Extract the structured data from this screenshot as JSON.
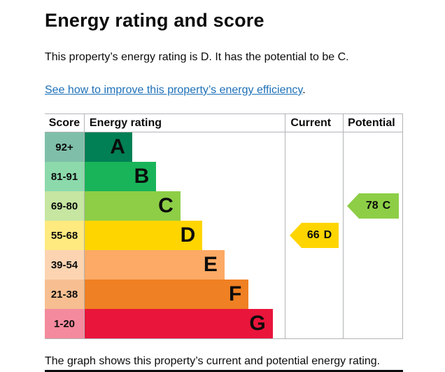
{
  "page": {
    "title": "Energy rating and score",
    "intro": "This property’s energy rating is D. It has the potential to be C.",
    "link_text": "See how to improve this property’s energy efficiency",
    "link_suffix": ".",
    "footer": "The graph shows this property’s current and potential energy rating."
  },
  "chart_data": {
    "type": "bar",
    "title": "Energy rating and score",
    "headers": [
      "Score",
      "Energy rating",
      "Current",
      "Potential"
    ],
    "bands": [
      {
        "score": "92+",
        "letter": "A",
        "color": "#008054",
        "tint": "#7fbfa9",
        "width_pct": 24
      },
      {
        "score": "81-91",
        "letter": "B",
        "color": "#19b459",
        "tint": "#8cd9ac",
        "width_pct": 36
      },
      {
        "score": "69-80",
        "letter": "C",
        "color": "#8dce46",
        "tint": "#c6e6a2",
        "width_pct": 48
      },
      {
        "score": "55-68",
        "letter": "D",
        "color": "#ffd500",
        "tint": "#ffea80",
        "width_pct": 59
      },
      {
        "score": "39-54",
        "letter": "E",
        "color": "#fcaa65",
        "tint": "#fdd4b2",
        "width_pct": 70
      },
      {
        "score": "21-38",
        "letter": "F",
        "color": "#ef8023",
        "tint": "#f7bf91",
        "width_pct": 82
      },
      {
        "score": "1-20",
        "letter": "G",
        "color": "#e9153b",
        "tint": "#f48a9d",
        "width_pct": 94
      }
    ],
    "current": {
      "value": "66",
      "letter": "D",
      "color": "#ffd500",
      "band_index": 3
    },
    "potential": {
      "value": "78",
      "letter": "C",
      "color": "#8dce46",
      "band_index": 2
    }
  }
}
